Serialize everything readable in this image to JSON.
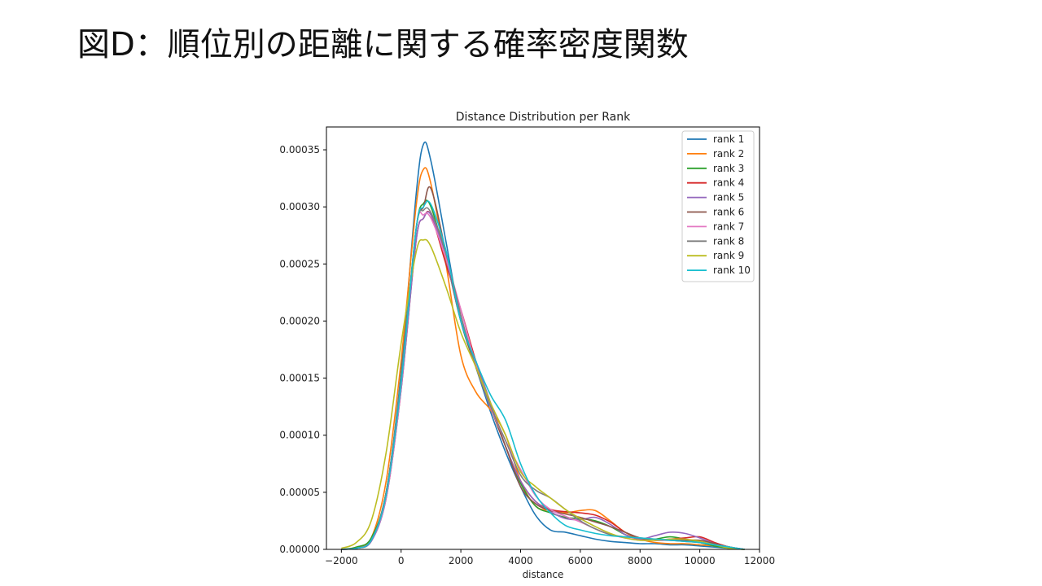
{
  "slide": {
    "title": "図D：順位別の距離に関する確率密度関数"
  },
  "chart_data": {
    "type": "line",
    "title": "Distance Distribution per Rank",
    "xlabel": "distance",
    "ylabel": "",
    "xlim": [
      -2500,
      12000
    ],
    "ylim": [
      0,
      0.00037
    ],
    "xticks": [
      -2000,
      0,
      2000,
      4000,
      6000,
      8000,
      10000,
      12000
    ],
    "xtick_labels": [
      "−2000",
      "0",
      "2000",
      "4000",
      "6000",
      "8000",
      "10000",
      "12000"
    ],
    "yticks": [
      0.0,
      5e-05,
      0.0001,
      0.00015,
      0.0002,
      0.00025,
      0.0003,
      0.00035
    ],
    "ytick_labels": [
      "0.00000",
      "0.00005",
      "0.00010",
      "0.00015",
      "0.00020",
      "0.00025",
      "0.00030",
      "0.00035"
    ],
    "grid": false,
    "legend_position": "top-right",
    "x": [
      -2000,
      -1500,
      -1000,
      -500,
      0,
      500,
      750,
      1000,
      1500,
      2000,
      2500,
      3000,
      3500,
      4000,
      4500,
      5000,
      5500,
      6000,
      6500,
      7000,
      7500,
      8000,
      8500,
      9000,
      9500,
      10000,
      10500,
      11000,
      11500
    ],
    "series": [
      {
        "name": "rank 1",
        "color": "#1f77b4",
        "values": [
          0,
          1e-06,
          8e-06,
          5e-05,
          0.000155,
          0.00031,
          0.000355,
          0.00034,
          0.00027,
          0.0002,
          0.00016,
          0.00012,
          8.5e-05,
          5.5e-05,
          3e-05,
          1.7e-05,
          1.5e-05,
          1.2e-05,
          9e-06,
          7e-06,
          6e-06,
          5e-06,
          5e-06,
          4e-06,
          4e-06,
          3e-06,
          2e-06,
          1e-06,
          0
        ]
      },
      {
        "name": "rank 2",
        "color": "#ff7f0e",
        "values": [
          0,
          2e-06,
          1e-05,
          6e-05,
          0.000165,
          0.0003,
          0.000333,
          0.00032,
          0.00025,
          0.00017,
          0.000138,
          0.000122,
          0.0001,
          6e-05,
          3.8e-05,
          3.4e-05,
          3.2e-05,
          3.4e-05,
          3.4e-05,
          2.5e-05,
          1.5e-05,
          9e-06,
          6e-06,
          5e-06,
          5e-06,
          4e-06,
          3e-06,
          1e-06,
          0
        ]
      },
      {
        "name": "rank 3",
        "color": "#2ca02c",
        "values": [
          0,
          2e-06,
          1e-05,
          5e-05,
          0.00015,
          0.00028,
          0.000303,
          0.0003,
          0.000255,
          0.0002,
          0.000165,
          0.000125,
          9e-05,
          5.8e-05,
          3.8e-05,
          3.2e-05,
          2.8e-05,
          2.7e-05,
          2.5e-05,
          2e-05,
          1.3e-05,
          9e-06,
          9e-06,
          1.1e-05,
          9e-06,
          6e-06,
          3e-06,
          1e-06,
          0
        ]
      },
      {
        "name": "rank 4",
        "color": "#d62728",
        "values": [
          0,
          1e-06,
          8e-06,
          4.5e-05,
          0.00014,
          0.00027,
          0.00029,
          0.000293,
          0.00025,
          0.00021,
          0.000165,
          0.000125,
          9e-05,
          6e-05,
          4.2e-05,
          3.5e-05,
          3.3e-05,
          3.2e-05,
          3e-05,
          2.4e-05,
          1.5e-05,
          1e-05,
          8e-06,
          9e-06,
          1e-05,
          1.1e-05,
          6e-06,
          2e-06,
          0
        ]
      },
      {
        "name": "rank 5",
        "color": "#9467bd",
        "values": [
          0,
          1e-06,
          7e-06,
          4.5e-05,
          0.00014,
          0.00027,
          0.00029,
          0.000293,
          0.000255,
          0.0002,
          0.000165,
          0.000128,
          9e-05,
          6e-05,
          4.2e-05,
          3.3e-05,
          2.7e-05,
          2.6e-05,
          2.8e-05,
          2.2e-05,
          1.3e-05,
          9e-06,
          1.2e-05,
          1.5e-05,
          1.4e-05,
          1e-05,
          5e-06,
          2e-06,
          0
        ]
      },
      {
        "name": "rank 6",
        "color": "#8c564b",
        "values": [
          0,
          1e-06,
          8e-06,
          5e-05,
          0.000148,
          0.00028,
          0.0003,
          0.000316,
          0.00026,
          0.0002,
          0.00016,
          0.000124,
          9e-05,
          5.5e-05,
          4e-05,
          3.4e-05,
          3.1e-05,
          2.8e-05,
          2.4e-05,
          2e-05,
          1.5e-05,
          1e-05,
          8e-06,
          8e-06,
          8e-06,
          8e-06,
          5e-06,
          2e-06,
          0
        ]
      },
      {
        "name": "rank 7",
        "color": "#e377c2",
        "values": [
          0,
          1e-06,
          8e-06,
          4.6e-05,
          0.000142,
          0.00028,
          0.000293,
          0.00029,
          0.000255,
          0.00021,
          0.000162,
          0.000124,
          9.5e-05,
          7e-05,
          4.7e-05,
          3.5e-05,
          2.9e-05,
          2.4e-05,
          1.8e-05,
          1.3e-05,
          1e-05,
          8e-06,
          8e-06,
          8e-06,
          7e-06,
          6e-06,
          4e-06,
          2e-06,
          0
        ]
      },
      {
        "name": "rank 8",
        "color": "#7f7f7f",
        "values": [
          0,
          1e-06,
          8e-06,
          5e-05,
          0.00015,
          0.00028,
          0.000297,
          0.000295,
          0.00026,
          0.000205,
          0.00016,
          0.000125,
          9.5e-05,
          6.5e-05,
          5.2e-05,
          4.5e-05,
          3.5e-05,
          2.5e-05,
          1.8e-05,
          1.3e-05,
          1.1e-05,
          1e-05,
          9e-06,
          8e-06,
          7e-06,
          6e-06,
          4e-06,
          2e-06,
          0
        ]
      },
      {
        "name": "rank 9",
        "color": "#bcbd22",
        "values": [
          1e-06,
          6e-06,
          2.5e-05,
          8.5e-05,
          0.00018,
          0.00026,
          0.000271,
          0.000265,
          0.00023,
          0.00019,
          0.00016,
          0.000128,
          0.0001,
          6.8e-05,
          5.5e-05,
          4.5e-05,
          3.5e-05,
          2.7e-05,
          2e-05,
          1.4e-05,
          1e-05,
          8e-06,
          8e-06,
          9e-06,
          9e-06,
          7e-06,
          4e-06,
          1e-06,
          0
        ]
      },
      {
        "name": "rank 10",
        "color": "#17becf",
        "values": [
          0,
          1e-06,
          8e-06,
          4.8e-05,
          0.000145,
          0.00028,
          0.0003,
          0.000302,
          0.000262,
          0.0002,
          0.000165,
          0.000135,
          0.000113,
          7.5e-05,
          4.8e-05,
          3.2e-05,
          2.1e-05,
          1.7e-05,
          1.4e-05,
          1.2e-05,
          1.1e-05,
          1e-05,
          9e-06,
          8e-06,
          7e-06,
          6e-06,
          4e-06,
          2e-06,
          0
        ]
      }
    ]
  }
}
